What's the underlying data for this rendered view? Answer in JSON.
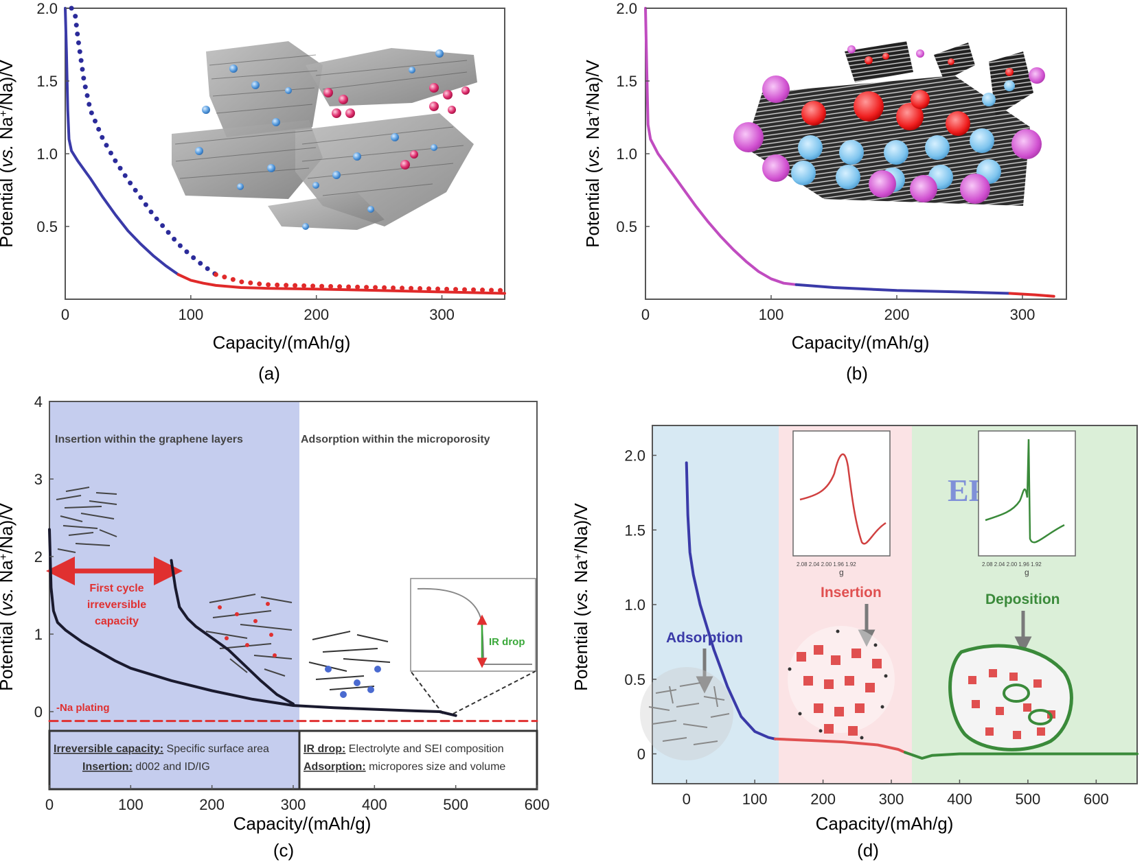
{
  "figure": {
    "panels": [
      "(a)",
      "(b)",
      "(c)",
      "(d)"
    ]
  },
  "chart_data": [
    {
      "panel": "(a)",
      "type": "line",
      "xlabel": "Capacity/(mAh/g)",
      "ylabel": "Potential (vs. Na+/Na)/V",
      "xlim": [
        0,
        350
      ],
      "ylim": [
        0,
        2.0
      ],
      "x_ticks": [
        "0",
        "100",
        "200",
        "300"
      ],
      "y_ticks": [
        "0.5",
        "1.0",
        "1.5",
        "2.0"
      ],
      "colors": {
        "discharge": "#3a3aa8",
        "plateau": "#e02a2a",
        "charge": "#2b2b9a"
      },
      "series": [
        {
          "name": "discharge-slope",
          "style": "solid",
          "color": "discharge",
          "x": [
            0,
            1,
            2,
            3,
            5,
            10,
            20,
            30,
            40,
            50,
            60,
            70,
            80,
            90
          ],
          "y": [
            2.0,
            1.7,
            1.3,
            1.1,
            1.02,
            0.95,
            0.83,
            0.7,
            0.58,
            0.47,
            0.38,
            0.3,
            0.23,
            0.17
          ]
        },
        {
          "name": "discharge-plateau",
          "style": "solid",
          "color": "plateau",
          "x": [
            90,
            100,
            110,
            120,
            140,
            160,
            200,
            250,
            300,
            350
          ],
          "y": [
            0.17,
            0.13,
            0.11,
            0.095,
            0.08,
            0.075,
            0.07,
            0.06,
            0.05,
            0.04
          ]
        },
        {
          "name": "charge-dotted",
          "style": "dotted",
          "color": "charge",
          "x": [
            5,
            8,
            10,
            15,
            20,
            30,
            40,
            50,
            60,
            70,
            80,
            90,
            100,
            110,
            120
          ],
          "y": [
            2.0,
            1.95,
            1.8,
            1.5,
            1.3,
            1.1,
            0.95,
            0.82,
            0.7,
            0.58,
            0.48,
            0.38,
            0.3,
            0.23,
            0.17
          ]
        },
        {
          "name": "charge-dotted-plateau",
          "style": "dotted",
          "color": "plateau",
          "x": [
            120,
            140,
            160,
            200,
            250,
            300,
            350
          ],
          "y": [
            0.17,
            0.12,
            0.1,
            0.09,
            0.08,
            0.07,
            0.06
          ]
        }
      ]
    },
    {
      "panel": "(b)",
      "type": "line",
      "xlabel": "Capacity/(mAh/g)",
      "ylabel": "Potential (vs. Na+/Na)/V",
      "xlim": [
        0,
        335
      ],
      "ylim": [
        0,
        2.0
      ],
      "x_ticks": [
        "0",
        "100",
        "200",
        "300"
      ],
      "y_ticks": [
        "0.5",
        "1.0",
        "1.5",
        "2.0"
      ],
      "colors": {
        "slope": "#c04cc0",
        "plateau": "#3a3aa8",
        "end": "#e02a2a"
      },
      "series": [
        {
          "name": "slope",
          "style": "solid",
          "color": "slope",
          "x": [
            0,
            1,
            2,
            4,
            10,
            20,
            30,
            40,
            50,
            60,
            70,
            80,
            90,
            100,
            110,
            120
          ],
          "y": [
            2.0,
            1.6,
            1.2,
            1.1,
            1.0,
            0.88,
            0.76,
            0.64,
            0.53,
            0.43,
            0.34,
            0.26,
            0.19,
            0.14,
            0.11,
            0.1
          ]
        },
        {
          "name": "plateau",
          "style": "solid",
          "color": "plateau",
          "x": [
            120,
            150,
            200,
            250,
            290
          ],
          "y": [
            0.1,
            0.08,
            0.06,
            0.05,
            0.04
          ]
        },
        {
          "name": "end",
          "style": "solid",
          "color": "end",
          "x": [
            290,
            310,
            325
          ],
          "y": [
            0.04,
            0.03,
            0.02
          ]
        }
      ]
    },
    {
      "panel": "(c)",
      "type": "line",
      "xlabel": "Capacity/(mAh/g)",
      "ylabel": "Potential (vs. Na+/Na)/V",
      "xlim": [
        0,
        600
      ],
      "ylim": [
        -1.0,
        4.0
      ],
      "x_ticks": [
        "0",
        "100",
        "200",
        "300",
        "400",
        "500",
        "600"
      ],
      "y_ticks": [
        "0",
        "1",
        "2",
        "3",
        "4"
      ],
      "regions": [
        {
          "label": "Insertion within the graphene layers",
          "from": 0,
          "to": 305,
          "color": "#c5cdee"
        },
        {
          "label": "Adsorption within the microporosity",
          "from": 305,
          "to": 600,
          "color": "#ffffff"
        }
      ],
      "annotations": {
        "first_cycle": "First cycle irreversible capacity",
        "na_plating": "-Na plating",
        "ir_drop": "IR drop"
      },
      "bottom_box": {
        "left_line1_key": "Irreversible capacity:",
        "left_line1_val": " Specific surface area",
        "left_line2_key": "Insertion:",
        "left_line2_val": " d002 and ID/IG",
        "right_line1_key": "IR drop:",
        "right_line1_val": " Electrolyte and SEI composition",
        "right_line2_key": "Adsorption:",
        "right_line2_val": " micropores size and volume"
      },
      "colors": {
        "discharge": "#1a1a2e",
        "plating": "#e03030",
        "arrow": "#e03030"
      },
      "series": [
        {
          "name": "first-discharge",
          "style": "solid",
          "color": "discharge",
          "x": [
            0,
            2,
            5,
            10,
            20,
            40,
            60,
            80,
            100,
            150,
            200,
            250,
            300,
            350,
            400,
            450,
            480,
            500
          ],
          "y": [
            2.35,
            1.6,
            1.3,
            1.15,
            1.05,
            0.9,
            0.78,
            0.66,
            0.56,
            0.4,
            0.27,
            0.16,
            0.08,
            0.05,
            0.03,
            0.01,
            0.0,
            -0.05
          ]
        },
        {
          "name": "first-charge",
          "style": "solid",
          "color": "discharge",
          "x": [
            150,
            155,
            160,
            170,
            180,
            200,
            220,
            240,
            260,
            280,
            300
          ],
          "y": [
            1.95,
            1.6,
            1.35,
            1.2,
            1.1,
            0.95,
            0.8,
            0.6,
            0.4,
            0.22,
            0.1
          ]
        },
        {
          "name": "na-plating",
          "style": "dashed",
          "color": "plating",
          "x": [
            0,
            600
          ],
          "y": [
            -0.12,
            -0.12
          ]
        }
      ]
    },
    {
      "panel": "(d)",
      "type": "line",
      "xlabel": "Capacity/(mAh/g)",
      "ylabel": "Potential (vs. Na+/Na)/V",
      "xlim": [
        -50,
        660
      ],
      "ylim": [
        -0.2,
        2.2
      ],
      "x_ticks": [
        "0",
        "100",
        "200",
        "300",
        "400",
        "500",
        "600"
      ],
      "y_ticks": [
        "0",
        "0.5",
        "1.0",
        "1.5",
        "2.0"
      ],
      "regions": [
        {
          "label": "Adsorption",
          "from": -50,
          "to": 130,
          "color": "#d7e9f3"
        },
        {
          "label": "Insertion",
          "from": 130,
          "to": 320,
          "color": "#fbe3e5"
        },
        {
          "label": "Deposition",
          "from": 320,
          "to": 660,
          "color": "#dbefd8"
        }
      ],
      "epr_label": "EPR",
      "inset_axis_label": "g",
      "inset_ticks": [
        "2.08",
        "2.04",
        "2.00",
        "1.96",
        "1.92"
      ],
      "colors": {
        "adsorption": "#3a3aa8",
        "insertion": "#e05050",
        "deposition": "#3a8a3a",
        "epr": "#8090d8"
      },
      "series": [
        {
          "name": "adsorption",
          "style": "solid",
          "color": "adsorption",
          "x": [
            0,
            2,
            5,
            10,
            20,
            30,
            40,
            60,
            80,
            100,
            120,
            130
          ],
          "y": [
            1.95,
            1.6,
            1.35,
            1.2,
            1.0,
            0.85,
            0.7,
            0.45,
            0.25,
            0.15,
            0.11,
            0.1
          ]
        },
        {
          "name": "insertion",
          "style": "solid",
          "color": "insertion",
          "x": [
            130,
            180,
            230,
            280,
            310,
            320
          ],
          "y": [
            0.1,
            0.09,
            0.08,
            0.06,
            0.03,
            0.01
          ]
        },
        {
          "name": "deposition",
          "style": "solid",
          "color": "deposition",
          "x": [
            320,
            345,
            360,
            400,
            500,
            660
          ],
          "y": [
            0.01,
            -0.03,
            -0.01,
            0.0,
            0.0,
            0.0
          ]
        }
      ]
    }
  ]
}
